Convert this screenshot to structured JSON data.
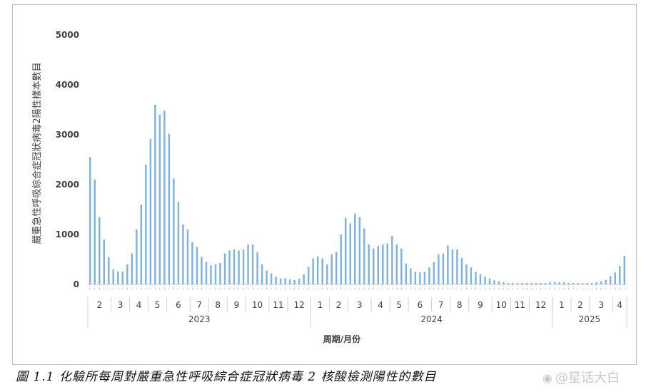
{
  "chart_data": {
    "type": "bar",
    "title": "",
    "ylabel": "嚴重急性呼吸綜合症冠狀病毒2陽性樣本數目",
    "xlabel": "周期/月份",
    "ylim": [
      0,
      5000
    ],
    "yticks": [
      0,
      1000,
      2000,
      3000,
      4000,
      5000
    ],
    "grid": false,
    "bar_color": "#7fb2dd",
    "months": [
      {
        "year": "2023",
        "label": "2",
        "values": [
          2550,
          2100,
          1350,
          900,
          550
        ]
      },
      {
        "year": "2023",
        "label": "3",
        "values": [
          300,
          260,
          260,
          400
        ]
      },
      {
        "year": "2023",
        "label": "4",
        "values": [
          620,
          1100,
          1600,
          2400
        ]
      },
      {
        "year": "2023",
        "label": "5",
        "values": [
          2920,
          3600,
          3400,
          3480
        ]
      },
      {
        "year": "2023",
        "label": "6",
        "values": [
          3020,
          2120,
          1650,
          1200,
          1100
        ]
      },
      {
        "year": "2023",
        "label": "7",
        "values": [
          850,
          750,
          550,
          450
        ]
      },
      {
        "year": "2023",
        "label": "8",
        "values": [
          380,
          400,
          430,
          620
        ]
      },
      {
        "year": "2023",
        "label": "9",
        "values": [
          680,
          700,
          680,
          700
        ]
      },
      {
        "year": "2023",
        "label": "10",
        "values": [
          800,
          800,
          640,
          400,
          280
        ]
      },
      {
        "year": "2023",
        "label": "11",
        "values": [
          220,
          150,
          120,
          120
        ]
      },
      {
        "year": "2023",
        "label": "12",
        "values": [
          100,
          90,
          110,
          200,
          350
        ]
      },
      {
        "year": "2024",
        "label": "1",
        "values": [
          520,
          560,
          520,
          400
        ]
      },
      {
        "year": "2024",
        "label": "2",
        "values": [
          600,
          650,
          1000,
          1330
        ]
      },
      {
        "year": "2024",
        "label": "3",
        "values": [
          1220,
          1420,
          1350,
          1120,
          800
        ]
      },
      {
        "year": "2024",
        "label": "4",
        "values": [
          720,
          770,
          800,
          820
        ]
      },
      {
        "year": "2024",
        "label": "5",
        "values": [
          970,
          800,
          720,
          420
        ]
      },
      {
        "year": "2024",
        "label": "6",
        "values": [
          320,
          250,
          240,
          250,
          340
        ]
      },
      {
        "year": "2024",
        "label": "7",
        "values": [
          450,
          600,
          620,
          780
        ]
      },
      {
        "year": "2024",
        "label": "8",
        "values": [
          700,
          700,
          530,
          400
        ]
      },
      {
        "year": "2024",
        "label": "9",
        "values": [
          340,
          250,
          200,
          150,
          120
        ]
      },
      {
        "year": "2024",
        "label": "10",
        "values": [
          80,
          60,
          40,
          30
        ]
      },
      {
        "year": "2024",
        "label": "11",
        "values": [
          30,
          30,
          30,
          30
        ]
      },
      {
        "year": "2024",
        "label": "12",
        "values": [
          30,
          30,
          30,
          30,
          40
        ]
      },
      {
        "year": "2025",
        "label": "1",
        "values": [
          50,
          40,
          40,
          30
        ]
      },
      {
        "year": "2025",
        "label": "2",
        "values": [
          30,
          30,
          30,
          30
        ]
      },
      {
        "year": "2025",
        "label": "3",
        "values": [
          30,
          40,
          60,
          90,
          170
        ]
      },
      {
        "year": "2025",
        "label": "4",
        "values": [
          240,
          370,
          570
        ]
      }
    ],
    "years": [
      "2023",
      "2024",
      "2025"
    ]
  },
  "caption": "圖 1.1 化驗所每周對嚴重急性呼吸綜合症冠狀病毒 2 核酸檢測陽性的數目",
  "watermark": "@星话大白",
  "watermark_icon": "weibo-icon"
}
